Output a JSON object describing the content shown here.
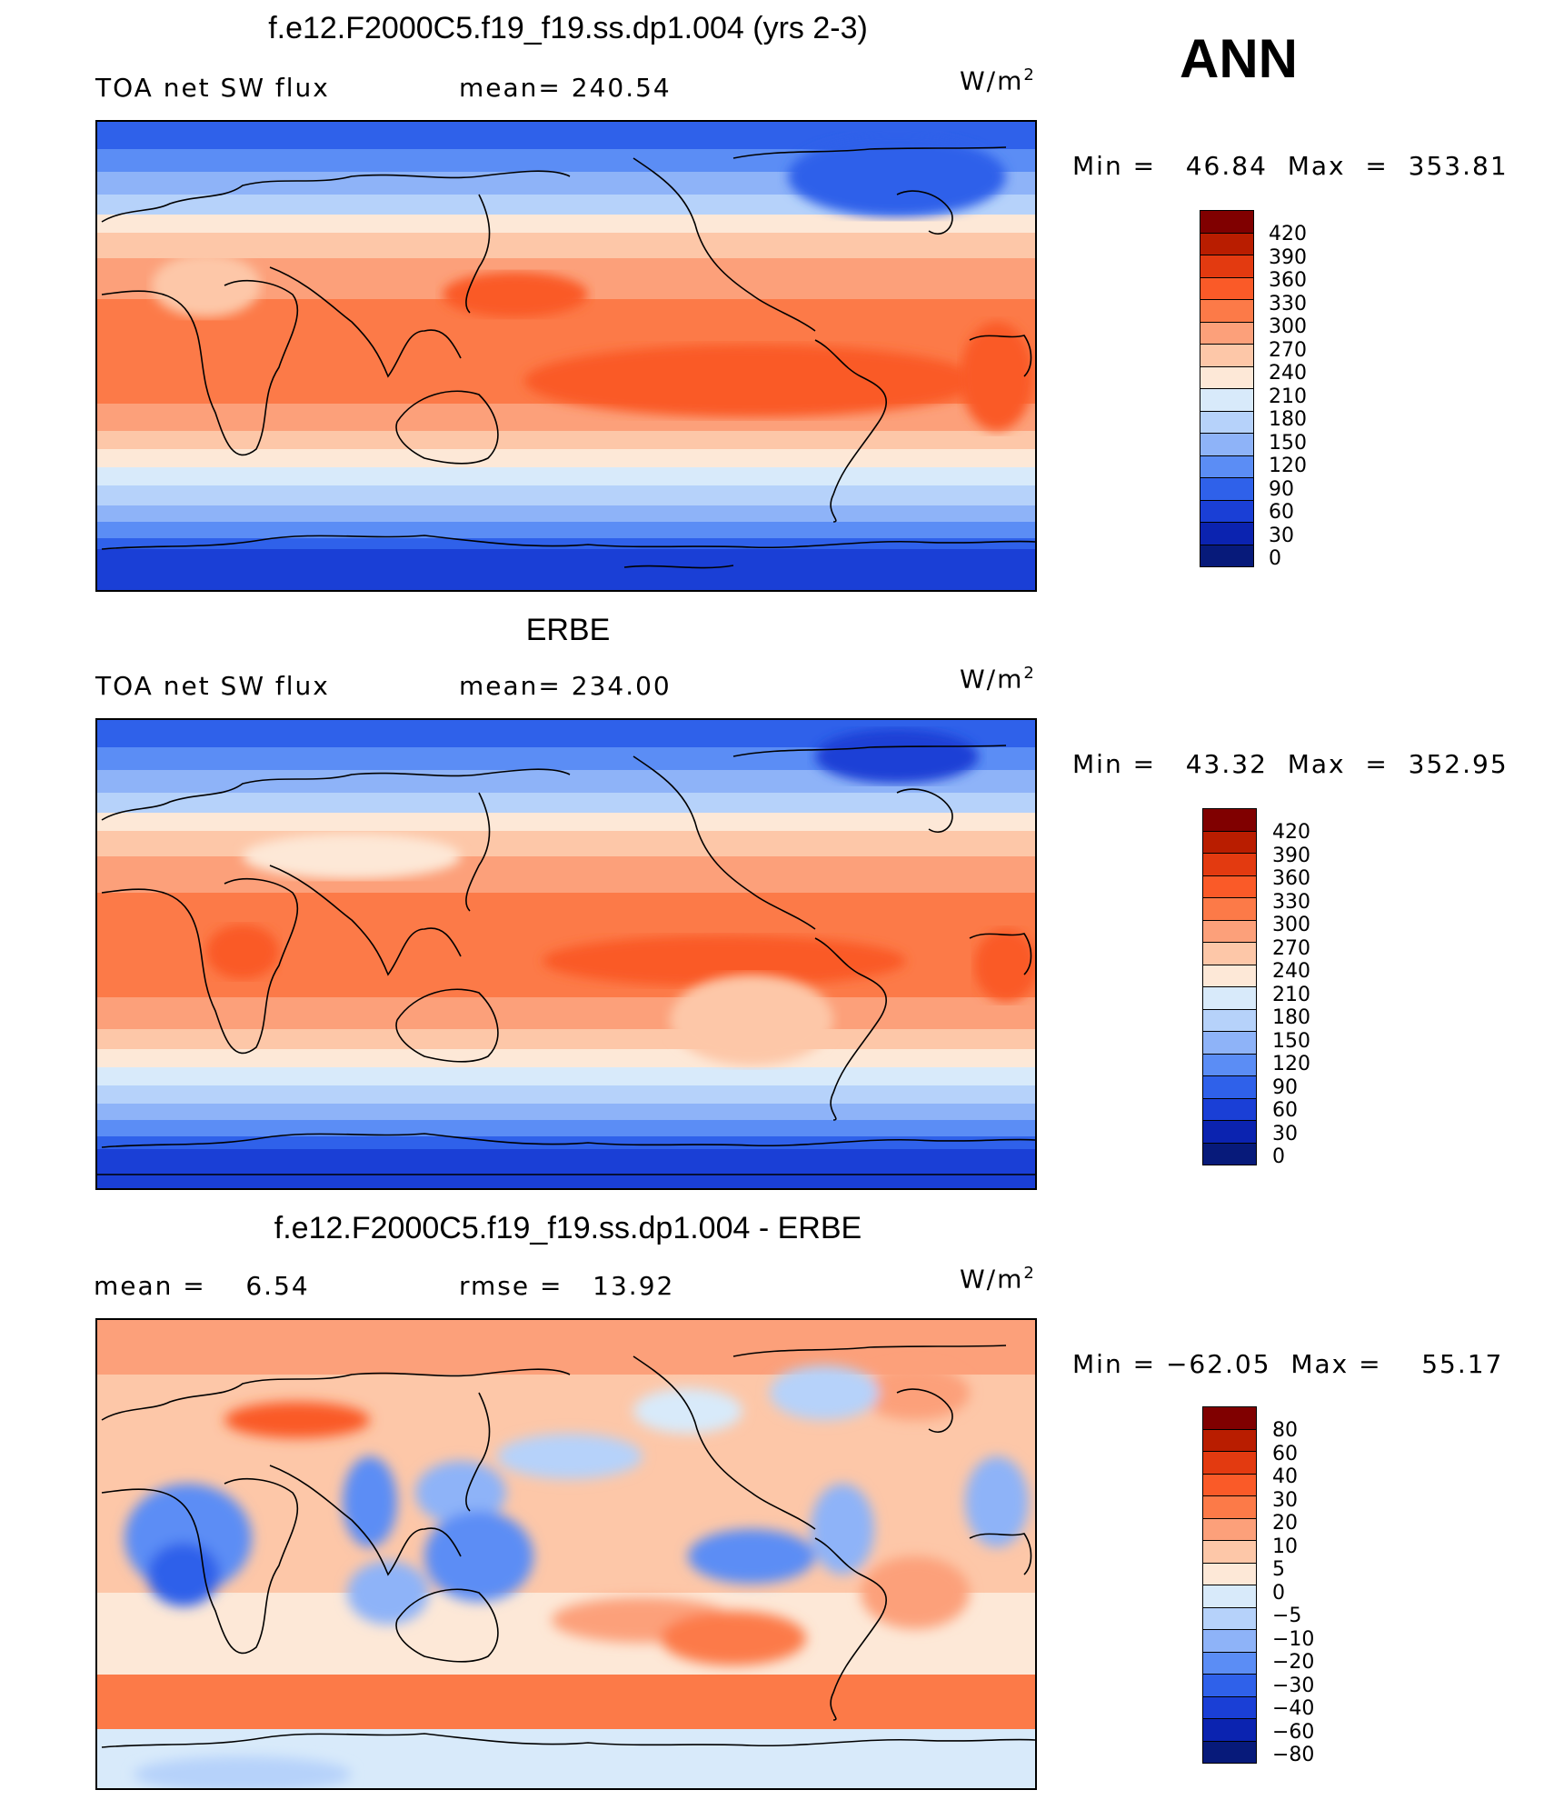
{
  "season": "ANN",
  "panels": [
    {
      "id": "model",
      "title": "f.e12.F2000C5.f19_f19.ss.dp1.004 (yrs 2-3)",
      "left_label": "TOA net SW flux",
      "stat_label": "mean= 240.54",
      "units": "W/m",
      "units_exp": "2",
      "minmax": "Min =   46.84  Max  =  353.81",
      "legend": {
        "levels": [
          "420",
          "390",
          "360",
          "330",
          "300",
          "270",
          "240",
          "210",
          "180",
          "150",
          "120",
          "90",
          "60",
          "30",
          "0"
        ],
        "colors": [
          "#800000",
          "#b91d00",
          "#e33a10",
          "#fa5a28",
          "#fc7a48",
          "#fca07a",
          "#fdc7a8",
          "#fde8d7",
          "#d8eafa",
          "#b6d2fa",
          "#8eb3f8",
          "#5b8df5",
          "#2f61ea",
          "#1a3fd6",
          "#0b23b0",
          "#071a7a"
        ]
      }
    },
    {
      "id": "obs",
      "title": "ERBE",
      "left_label": "TOA net SW flux",
      "stat_label": "mean= 234.00",
      "units": "W/m",
      "units_exp": "2",
      "minmax": "Min =   43.32  Max  =  352.95",
      "legend": {
        "levels": [
          "420",
          "390",
          "360",
          "330",
          "300",
          "270",
          "240",
          "210",
          "180",
          "150",
          "120",
          "90",
          "60",
          "30",
          "0"
        ],
        "colors": [
          "#800000",
          "#b91d00",
          "#e33a10",
          "#fa5a28",
          "#fc7a48",
          "#fca07a",
          "#fdc7a8",
          "#fde8d7",
          "#d8eafa",
          "#b6d2fa",
          "#8eb3f8",
          "#5b8df5",
          "#2f61ea",
          "#1a3fd6",
          "#0b23b0",
          "#071a7a"
        ]
      }
    },
    {
      "id": "diff",
      "title": "f.e12.F2000C5.f19_f19.ss.dp1.004 - ERBE",
      "left_label": "mean =    6.54",
      "stat_label": "rmse =   13.92",
      "units": "W/m",
      "units_exp": "2",
      "minmax": "Min = −62.05  Max =    55.17",
      "legend": {
        "levels": [
          "80",
          "60",
          "40",
          "30",
          "20",
          "10",
          "5",
          "0",
          "−5",
          "−10",
          "−20",
          "−30",
          "−40",
          "−60",
          "−80"
        ],
        "colors": [
          "#800000",
          "#b91d00",
          "#e33a10",
          "#fa5a28",
          "#fc7a48",
          "#fca07a",
          "#fdc7a8",
          "#fde8d7",
          "#d8eafa",
          "#b6d2fa",
          "#8eb3f8",
          "#5b8df5",
          "#2f61ea",
          "#1a3fd6",
          "#0b23b0",
          "#071a7a"
        ]
      }
    }
  ]
}
